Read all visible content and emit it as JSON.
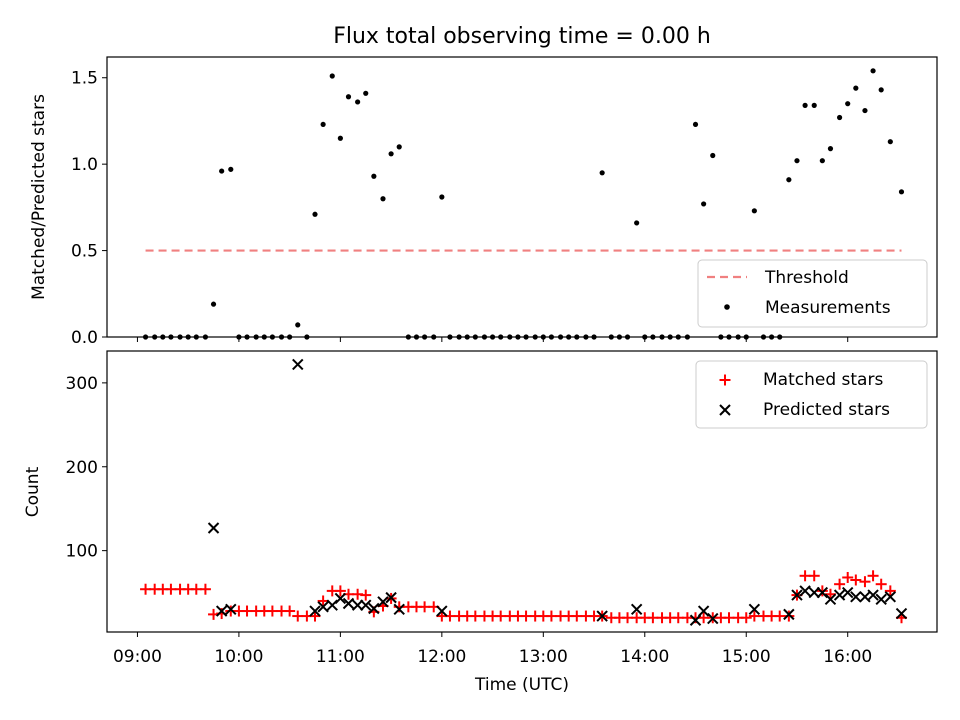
{
  "figure": {
    "title": "Flux total observing time = 0.00 h"
  },
  "chart_data": [
    {
      "type": "scatter",
      "ylabel": "Matched/Predicted stars",
      "xlim": [
        8.7,
        16.88
      ],
      "ylim": [
        0,
        1.62
      ],
      "yticks": [
        0.0,
        0.5,
        1.0,
        1.5
      ],
      "ytick_labels": [
        "0.0",
        "0.5",
        "1.0",
        "1.5"
      ],
      "grid": false,
      "legend_position": "lower-right",
      "threshold": {
        "name": "Threshold",
        "value": 0.5,
        "x_range": [
          9.08,
          16.53
        ],
        "color": "#f08080"
      },
      "series": [
        {
          "name": "Measurements",
          "color": "#000000",
          "points": [
            [
              9.08,
              0
            ],
            [
              9.17,
              0
            ],
            [
              9.25,
              0
            ],
            [
              9.33,
              0
            ],
            [
              9.42,
              0
            ],
            [
              9.5,
              0
            ],
            [
              9.58,
              0
            ],
            [
              9.67,
              0
            ],
            [
              9.75,
              0.19
            ],
            [
              9.83,
              0.96
            ],
            [
              9.92,
              0.97
            ],
            [
              10.0,
              0
            ],
            [
              10.08,
              0
            ],
            [
              10.17,
              0
            ],
            [
              10.25,
              0
            ],
            [
              10.33,
              0
            ],
            [
              10.42,
              0
            ],
            [
              10.5,
              0
            ],
            [
              10.58,
              0.07
            ],
            [
              10.67,
              0
            ],
            [
              10.75,
              0.71
            ],
            [
              10.83,
              1.23
            ],
            [
              10.92,
              1.51
            ],
            [
              11.0,
              1.15
            ],
            [
              11.08,
              1.39
            ],
            [
              11.17,
              1.36
            ],
            [
              11.25,
              1.41
            ],
            [
              11.33,
              0.93
            ],
            [
              11.42,
              0.8
            ],
            [
              11.5,
              1.06
            ],
            [
              11.58,
              1.1
            ],
            [
              11.67,
              0
            ],
            [
              11.75,
              0
            ],
            [
              11.83,
              0
            ],
            [
              11.92,
              0
            ],
            [
              12.0,
              0.81
            ],
            [
              12.08,
              0
            ],
            [
              12.17,
              0
            ],
            [
              12.25,
              0
            ],
            [
              12.33,
              0
            ],
            [
              12.42,
              0
            ],
            [
              12.5,
              0
            ],
            [
              12.58,
              0
            ],
            [
              12.67,
              0
            ],
            [
              12.75,
              0
            ],
            [
              12.83,
              0
            ],
            [
              12.92,
              0
            ],
            [
              13.0,
              0
            ],
            [
              13.08,
              0
            ],
            [
              13.17,
              0
            ],
            [
              13.25,
              0
            ],
            [
              13.33,
              0
            ],
            [
              13.42,
              0
            ],
            [
              13.5,
              0
            ],
            [
              13.58,
              0.95
            ],
            [
              13.67,
              0
            ],
            [
              13.75,
              0
            ],
            [
              13.83,
              0
            ],
            [
              13.92,
              0.66
            ],
            [
              14.0,
              0
            ],
            [
              14.08,
              0
            ],
            [
              14.17,
              0
            ],
            [
              14.25,
              0
            ],
            [
              14.33,
              0
            ],
            [
              14.42,
              0
            ],
            [
              14.5,
              1.23
            ],
            [
              14.58,
              0.77
            ],
            [
              14.67,
              1.05
            ],
            [
              14.75,
              0
            ],
            [
              14.83,
              0
            ],
            [
              14.92,
              0
            ],
            [
              15.0,
              0
            ],
            [
              15.08,
              0.73
            ],
            [
              15.17,
              0
            ],
            [
              15.25,
              0
            ],
            [
              15.33,
              0
            ],
            [
              15.42,
              0.91
            ],
            [
              15.5,
              1.02
            ],
            [
              15.58,
              1.34
            ],
            [
              15.67,
              1.34
            ],
            [
              15.75,
              1.02
            ],
            [
              15.83,
              1.09
            ],
            [
              15.92,
              1.27
            ],
            [
              16.0,
              1.35
            ],
            [
              16.08,
              1.44
            ],
            [
              16.17,
              1.31
            ],
            [
              16.25,
              1.54
            ],
            [
              16.33,
              1.43
            ],
            [
              16.42,
              1.13
            ],
            [
              16.53,
              0.84
            ]
          ]
        }
      ]
    },
    {
      "type": "scatter",
      "xlabel": "Time (UTC)",
      "ylabel": "Count",
      "xlim": [
        8.7,
        16.88
      ],
      "ylim": [
        3,
        338
      ],
      "xticks": [
        9,
        10,
        11,
        12,
        13,
        14,
        15,
        16
      ],
      "xtick_labels": [
        "09:00",
        "10:00",
        "11:00",
        "12:00",
        "13:00",
        "14:00",
        "15:00",
        "16:00"
      ],
      "yticks": [
        100,
        200,
        300
      ],
      "ytick_labels": [
        "100",
        "200",
        "300"
      ],
      "grid": false,
      "legend_position": "top-right",
      "series": [
        {
          "name": "Matched stars",
          "color": "#ff0000",
          "marker": "plus",
          "points": [
            [
              9.08,
              54
            ],
            [
              9.17,
              54
            ],
            [
              9.25,
              54
            ],
            [
              9.33,
              54
            ],
            [
              9.42,
              54
            ],
            [
              9.5,
              54
            ],
            [
              9.58,
              54
            ],
            [
              9.67,
              54
            ],
            [
              9.75,
              24
            ],
            [
              9.83,
              25
            ],
            [
              9.92,
              28
            ],
            [
              10.0,
              28
            ],
            [
              10.08,
              28
            ],
            [
              10.17,
              28
            ],
            [
              10.25,
              28
            ],
            [
              10.33,
              28
            ],
            [
              10.42,
              28
            ],
            [
              10.5,
              28
            ],
            [
              10.58,
              22
            ],
            [
              10.67,
              22
            ],
            [
              10.75,
              22
            ],
            [
              10.83,
              40
            ],
            [
              10.92,
              52
            ],
            [
              11.0,
              52
            ],
            [
              11.08,
              48
            ],
            [
              11.17,
              48
            ],
            [
              11.25,
              47
            ],
            [
              11.33,
              27
            ],
            [
              11.42,
              34
            ],
            [
              11.5,
              43
            ],
            [
              11.58,
              33
            ],
            [
              11.67,
              33
            ],
            [
              11.75,
              33
            ],
            [
              11.83,
              33
            ],
            [
              11.92,
              33
            ],
            [
              12.0,
              22
            ],
            [
              12.08,
              22
            ],
            [
              12.17,
              22
            ],
            [
              12.25,
              22
            ],
            [
              12.33,
              22
            ],
            [
              12.42,
              22
            ],
            [
              12.5,
              22
            ],
            [
              12.58,
              22
            ],
            [
              12.67,
              22
            ],
            [
              12.75,
              22
            ],
            [
              12.83,
              22
            ],
            [
              12.92,
              22
            ],
            [
              13.0,
              22
            ],
            [
              13.08,
              22
            ],
            [
              13.17,
              22
            ],
            [
              13.25,
              22
            ],
            [
              13.33,
              22
            ],
            [
              13.42,
              22
            ],
            [
              13.5,
              22
            ],
            [
              13.58,
              22
            ],
            [
              13.67,
              20
            ],
            [
              13.75,
              20
            ],
            [
              13.83,
              20
            ],
            [
              13.92,
              20
            ],
            [
              14.0,
              20
            ],
            [
              14.08,
              20
            ],
            [
              14.17,
              20
            ],
            [
              14.25,
              20
            ],
            [
              14.33,
              20
            ],
            [
              14.42,
              20
            ],
            [
              14.5,
              20
            ],
            [
              14.58,
              20
            ],
            [
              14.67,
              20
            ],
            [
              14.75,
              20
            ],
            [
              14.83,
              20
            ],
            [
              14.92,
              20
            ],
            [
              15.0,
              20
            ],
            [
              15.08,
              22
            ],
            [
              15.17,
              22
            ],
            [
              15.25,
              22
            ],
            [
              15.33,
              22
            ],
            [
              15.42,
              22
            ],
            [
              15.5,
              47
            ],
            [
              15.58,
              70
            ],
            [
              15.67,
              70
            ],
            [
              15.75,
              52
            ],
            [
              15.83,
              48
            ],
            [
              15.92,
              60
            ],
            [
              16.0,
              68
            ],
            [
              16.08,
              65
            ],
            [
              16.17,
              63
            ],
            [
              16.25,
              70
            ],
            [
              16.33,
              60
            ],
            [
              16.42,
              52
            ],
            [
              16.53,
              20
            ]
          ]
        },
        {
          "name": "Predicted stars",
          "color": "#000000",
          "marker": "x",
          "points": [
            [
              9.75,
              127
            ],
            [
              9.83,
              28
            ],
            [
              9.92,
              30
            ],
            [
              10.58,
              322
            ],
            [
              10.75,
              28
            ],
            [
              10.83,
              33
            ],
            [
              10.92,
              35
            ],
            [
              11.0,
              43
            ],
            [
              11.08,
              37
            ],
            [
              11.17,
              35
            ],
            [
              11.25,
              35
            ],
            [
              11.33,
              31
            ],
            [
              11.42,
              39
            ],
            [
              11.5,
              44
            ],
            [
              11.58,
              30
            ],
            [
              12.0,
              28
            ],
            [
              13.58,
              22
            ],
            [
              13.92,
              30
            ],
            [
              14.5,
              17
            ],
            [
              14.58,
              28
            ],
            [
              14.67,
              19
            ],
            [
              15.08,
              30
            ],
            [
              15.42,
              24
            ],
            [
              15.5,
              47
            ],
            [
              15.58,
              52
            ],
            [
              15.67,
              50
            ],
            [
              15.75,
              50
            ],
            [
              15.83,
              42
            ],
            [
              15.92,
              47
            ],
            [
              16.0,
              50
            ],
            [
              16.08,
              45
            ],
            [
              16.17,
              45
            ],
            [
              16.25,
              47
            ],
            [
              16.33,
              42
            ],
            [
              16.42,
              45
            ],
            [
              16.53,
              25
            ]
          ]
        }
      ]
    }
  ]
}
